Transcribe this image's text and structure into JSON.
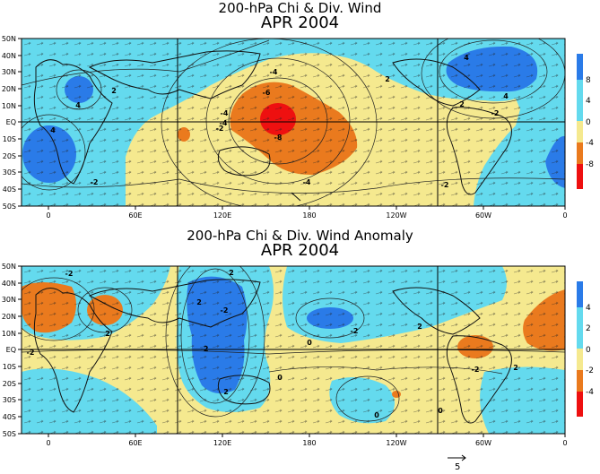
{
  "panels": [
    {
      "title_line1": "200-hPa Chi & Div. Wind",
      "title_line2": "APR 2004",
      "colorbar_labels": [
        "8",
        "4",
        "0",
        "-4",
        "-8"
      ],
      "contour_labels": [
        "-4",
        "-6",
        "-8",
        "-4",
        "-4",
        "-2",
        "-2",
        "-2",
        "2",
        "2",
        "4",
        "4",
        "4",
        "4",
        "-4",
        "-2",
        "2"
      ]
    },
    {
      "title_line1": "200-hPa Chi & Div. Wind Anomaly",
      "title_line2": "APR 2004",
      "colorbar_labels": [
        "4",
        "2",
        "0",
        "-2",
        "-4"
      ],
      "contour_labels": [
        "-2",
        "2",
        "-2",
        "2",
        "2",
        "-2",
        "-2",
        "2",
        "0",
        "0",
        "0",
        "2",
        "0",
        "-2",
        "-2",
        "2"
      ]
    }
  ],
  "lat_labels": [
    "50N",
    "40N",
    "30N",
    "20N",
    "10N",
    "EQ",
    "10S",
    "20S",
    "30S",
    "40S",
    "50S"
  ],
  "lon_labels": [
    "0",
    "60E",
    "120E",
    "180",
    "120W",
    "60W",
    "0"
  ],
  "reference_vector_label": "5",
  "colors": {
    "pos_high": "#2a7be8",
    "pos_low": "#64daee",
    "neg_low": "#f5e98f",
    "neg_mid": "#ea7a1e",
    "neg_high": "#ee1010"
  }
}
